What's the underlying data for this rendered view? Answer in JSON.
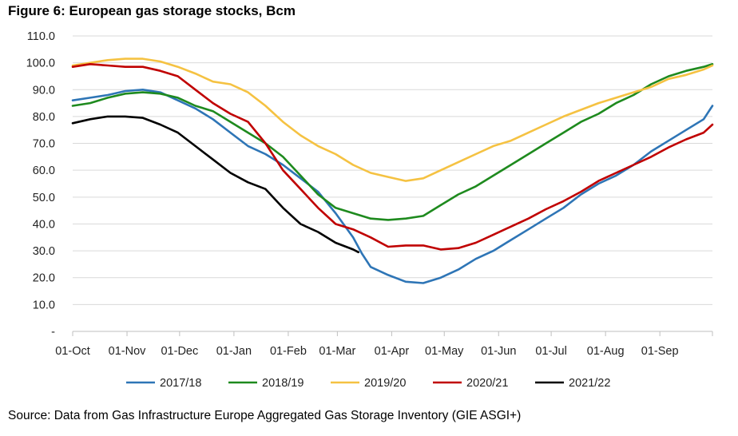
{
  "title": "Figure 6: European gas storage stocks, Bcm",
  "source": "Source: Data from Gas Infrastructure Europe Aggregated Gas Storage Inventory (GIE ASGI+)",
  "chart_data": {
    "type": "line",
    "ylim": [
      0,
      110
    ],
    "y_ticks": [
      "-",
      "10.0",
      "20.0",
      "30.0",
      "40.0",
      "50.0",
      "60.0",
      "70.0",
      "80.0",
      "90.0",
      "100.0",
      "110.0"
    ],
    "x_ticks": [
      "01-Oct",
      "01-Nov",
      "01-Dec",
      "01-Jan",
      "01-Feb",
      "01-Mar",
      "01-Apr",
      "01-May",
      "01-Jun",
      "01-Jul",
      "01-Aug",
      "01-Sep"
    ],
    "grid": "horizontal",
    "legend_position": "bottom",
    "x_unit": "day of gas year (day 0 = 01-Oct)",
    "series": [
      {
        "name": "2017/18",
        "color": "#2E75B6",
        "points": [
          [
            0,
            86
          ],
          [
            10,
            87
          ],
          [
            20,
            88
          ],
          [
            30,
            89.5
          ],
          [
            40,
            90
          ],
          [
            50,
            89
          ],
          [
            60,
            86
          ],
          [
            70,
            83
          ],
          [
            80,
            79
          ],
          [
            90,
            74
          ],
          [
            100,
            69
          ],
          [
            110,
            66
          ],
          [
            120,
            62
          ],
          [
            130,
            57
          ],
          [
            140,
            52
          ],
          [
            150,
            44
          ],
          [
            160,
            35
          ],
          [
            165,
            29
          ],
          [
            170,
            24
          ],
          [
            180,
            21
          ],
          [
            190,
            18.5
          ],
          [
            200,
            18
          ],
          [
            210,
            20
          ],
          [
            220,
            23
          ],
          [
            230,
            27
          ],
          [
            240,
            30
          ],
          [
            250,
            34
          ],
          [
            260,
            38
          ],
          [
            270,
            42
          ],
          [
            280,
            46
          ],
          [
            290,
            51
          ],
          [
            300,
            55
          ],
          [
            310,
            58
          ],
          [
            320,
            62
          ],
          [
            330,
            67
          ],
          [
            340,
            71
          ],
          [
            350,
            75
          ],
          [
            360,
            79
          ],
          [
            365,
            84
          ]
        ]
      },
      {
        "name": "2018/19",
        "color": "#1E8A1E",
        "points": [
          [
            0,
            84
          ],
          [
            10,
            85
          ],
          [
            20,
            87
          ],
          [
            30,
            88.5
          ],
          [
            40,
            89
          ],
          [
            50,
            88.5
          ],
          [
            60,
            87
          ],
          [
            70,
            84
          ],
          [
            80,
            82
          ],
          [
            90,
            78
          ],
          [
            100,
            74
          ],
          [
            110,
            70
          ],
          [
            120,
            65
          ],
          [
            130,
            58
          ],
          [
            140,
            51
          ],
          [
            150,
            46
          ],
          [
            160,
            44
          ],
          [
            170,
            42
          ],
          [
            180,
            41.5
          ],
          [
            190,
            42
          ],
          [
            200,
            43
          ],
          [
            210,
            47
          ],
          [
            220,
            51
          ],
          [
            230,
            54
          ],
          [
            240,
            58
          ],
          [
            250,
            62
          ],
          [
            260,
            66
          ],
          [
            270,
            70
          ],
          [
            280,
            74
          ],
          [
            290,
            78
          ],
          [
            300,
            81
          ],
          [
            310,
            85
          ],
          [
            320,
            88
          ],
          [
            330,
            92
          ],
          [
            340,
            95
          ],
          [
            350,
            97
          ],
          [
            360,
            98.5
          ],
          [
            365,
            99.5
          ]
        ]
      },
      {
        "name": "2019/20",
        "color": "#F5C242",
        "points": [
          [
            0,
            99
          ],
          [
            10,
            100
          ],
          [
            20,
            101
          ],
          [
            30,
            101.5
          ],
          [
            40,
            101.5
          ],
          [
            50,
            100.5
          ],
          [
            60,
            98.5
          ],
          [
            70,
            96
          ],
          [
            80,
            93
          ],
          [
            90,
            92
          ],
          [
            100,
            89
          ],
          [
            110,
            84
          ],
          [
            120,
            78
          ],
          [
            130,
            73
          ],
          [
            140,
            69
          ],
          [
            150,
            66
          ],
          [
            160,
            62
          ],
          [
            170,
            59
          ],
          [
            180,
            57.5
          ],
          [
            190,
            56
          ],
          [
            200,
            57
          ],
          [
            210,
            60
          ],
          [
            220,
            63
          ],
          [
            230,
            66
          ],
          [
            240,
            69
          ],
          [
            250,
            71
          ],
          [
            260,
            74
          ],
          [
            270,
            77
          ],
          [
            280,
            80
          ],
          [
            290,
            82.5
          ],
          [
            300,
            85
          ],
          [
            310,
            87
          ],
          [
            320,
            89
          ],
          [
            330,
            91
          ],
          [
            340,
            94
          ],
          [
            350,
            95.5
          ],
          [
            360,
            97.5
          ],
          [
            365,
            99
          ]
        ]
      },
      {
        "name": "2020/21",
        "color": "#C00000",
        "points": [
          [
            0,
            98.5
          ],
          [
            10,
            99.5
          ],
          [
            20,
            99
          ],
          [
            30,
            98.5
          ],
          [
            40,
            98.5
          ],
          [
            50,
            97
          ],
          [
            60,
            95
          ],
          [
            70,
            90
          ],
          [
            80,
            85
          ],
          [
            90,
            81
          ],
          [
            100,
            78
          ],
          [
            110,
            70
          ],
          [
            120,
            60
          ],
          [
            130,
            53
          ],
          [
            140,
            46
          ],
          [
            150,
            40
          ],
          [
            160,
            38
          ],
          [
            170,
            35
          ],
          [
            180,
            31.5
          ],
          [
            190,
            32
          ],
          [
            200,
            32
          ],
          [
            210,
            30.5
          ],
          [
            220,
            31
          ],
          [
            230,
            33
          ],
          [
            240,
            36
          ],
          [
            250,
            39
          ],
          [
            260,
            42
          ],
          [
            270,
            45.5
          ],
          [
            280,
            48.5
          ],
          [
            290,
            52
          ],
          [
            300,
            56
          ],
          [
            310,
            59
          ],
          [
            320,
            62
          ],
          [
            330,
            65
          ],
          [
            340,
            68.5
          ],
          [
            350,
            71.5
          ],
          [
            360,
            74
          ],
          [
            365,
            77
          ]
        ]
      },
      {
        "name": "2021/22",
        "color": "#000000",
        "points": [
          [
            0,
            77.5
          ],
          [
            10,
            79
          ],
          [
            20,
            80
          ],
          [
            30,
            80
          ],
          [
            40,
            79.5
          ],
          [
            50,
            77
          ],
          [
            60,
            74
          ],
          [
            70,
            69
          ],
          [
            80,
            64
          ],
          [
            90,
            59
          ],
          [
            100,
            55.5
          ],
          [
            110,
            53
          ],
          [
            120,
            46
          ],
          [
            130,
            40
          ],
          [
            140,
            37
          ],
          [
            150,
            33
          ],
          [
            160,
            30.5
          ],
          [
            163,
            29.5
          ]
        ]
      }
    ]
  }
}
